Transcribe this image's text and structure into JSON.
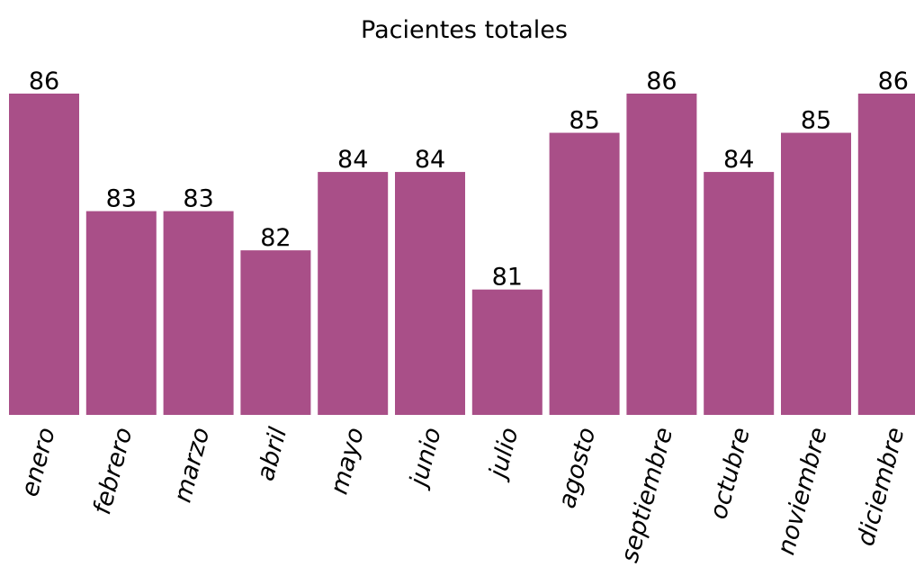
{
  "chart_data": {
    "type": "bar",
    "title": "Pacientes totales",
    "categories": [
      "enero",
      "febrero",
      "marzo",
      "abril",
      "mayo",
      "junio",
      "julio",
      "agosto",
      "septiembre",
      "octubre",
      "noviembre",
      "diciembre"
    ],
    "values": [
      86,
      83,
      83,
      82,
      84,
      84,
      81,
      85,
      86,
      84,
      85,
      86
    ],
    "color": "#a94f88",
    "ylim": [
      77.8,
      86
    ]
  }
}
